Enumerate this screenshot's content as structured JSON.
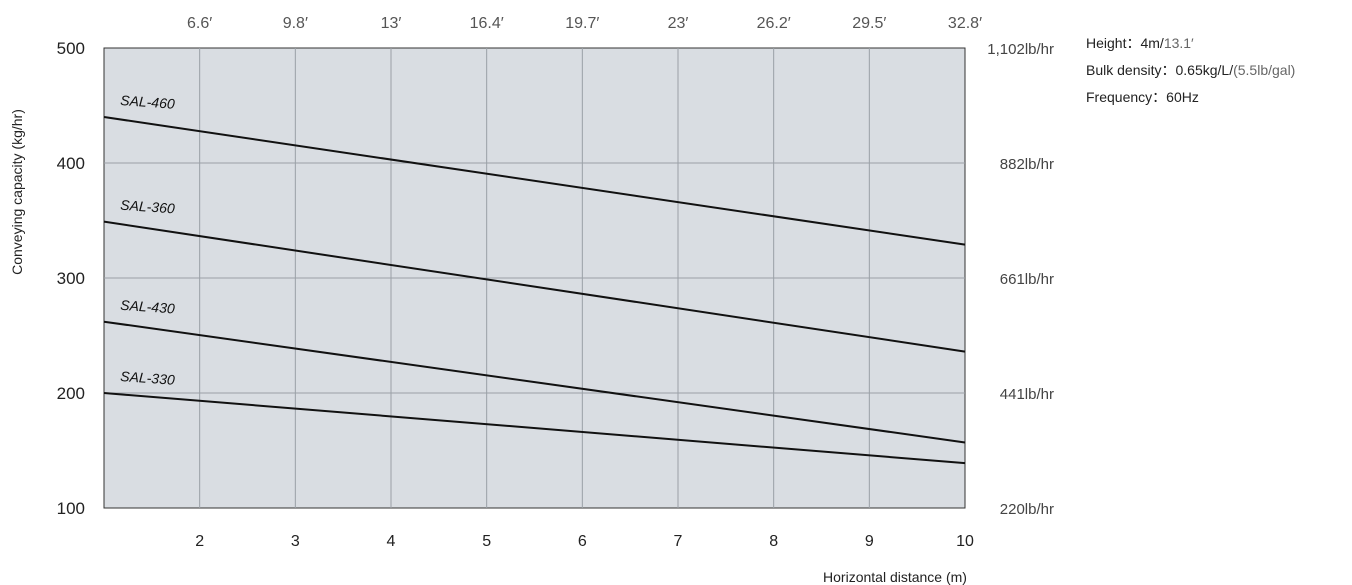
{
  "info": {
    "height_label": "Height：",
    "height_value": "4m/",
    "height_imperial": "13.1′",
    "density_label": "Bulk density：",
    "density_value": "0.65kg/L/",
    "density_imperial": "(5.5lb/gal)",
    "frequency_label": "Frequency：",
    "frequency_value": "60Hz"
  },
  "colors": {
    "plot_background": "#d9dde2",
    "grid": "#9aa0a6",
    "line": "#111111"
  },
  "chart_data": {
    "type": "line",
    "title": "",
    "xlabel": "Horizontal distance (m)",
    "ylabel": "Conveying capacity (kg/hr)",
    "xlim": [
      1,
      10
    ],
    "ylim": [
      100,
      500
    ],
    "x_ticks": [
      2,
      3,
      4,
      5,
      6,
      7,
      8,
      9,
      10
    ],
    "y_ticks": [
      100,
      200,
      300,
      400,
      500
    ],
    "top_axis": {
      "ticks": [
        2,
        3,
        4,
        5,
        6,
        7,
        8,
        9,
        10
      ],
      "labels": [
        "6.6′",
        "9.8′",
        "13′",
        "16.4′",
        "19.7′",
        "23′",
        "26.2′",
        "29.5′",
        "32.8′"
      ]
    },
    "right_axis": {
      "ticks": [
        500,
        400,
        300,
        200,
        100
      ],
      "labels": [
        "1,102lb/hr",
        "882lb/hr",
        "661lb/hr",
        "441lb/hr",
        "220lb/hr"
      ]
    },
    "grid": true,
    "legend": "none",
    "series": [
      {
        "name": "SAL-460",
        "x": [
          1,
          10
        ],
        "y": [
          440,
          329
        ]
      },
      {
        "name": "SAL-360",
        "x": [
          1,
          10
        ],
        "y": [
          349,
          236
        ]
      },
      {
        "name": "SAL-430",
        "x": [
          1,
          10
        ],
        "y": [
          262,
          157
        ]
      },
      {
        "name": "SAL-330",
        "x": [
          1,
          10
        ],
        "y": [
          200,
          139
        ]
      }
    ]
  }
}
